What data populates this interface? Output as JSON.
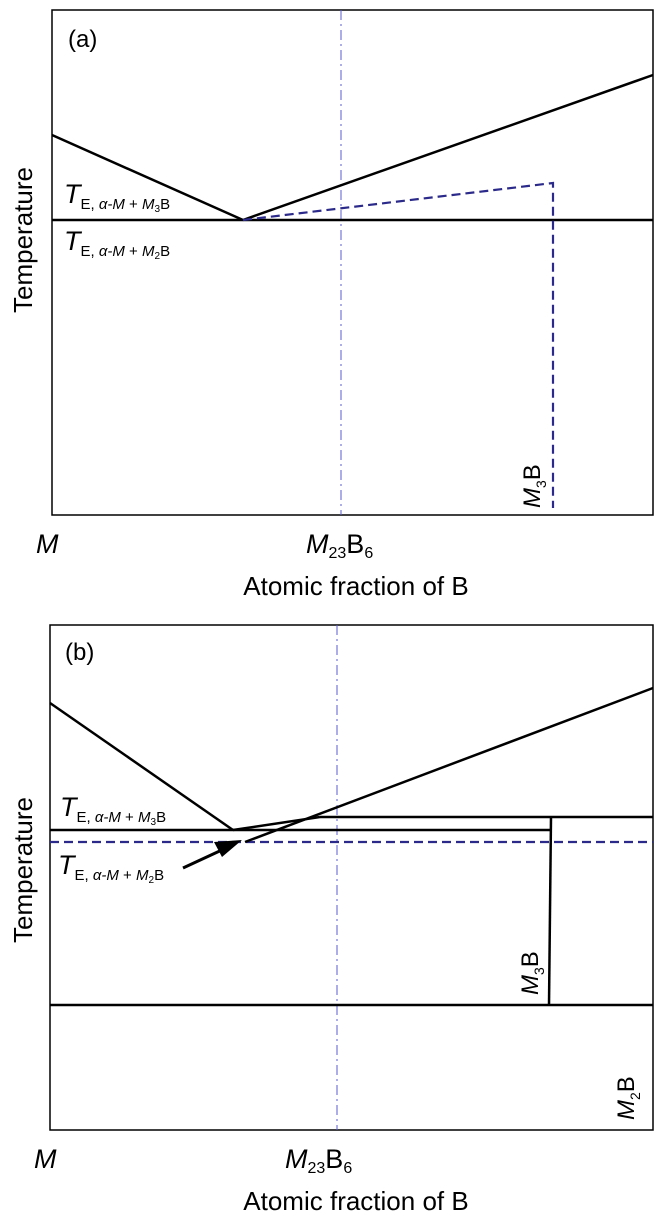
{
  "panels": [
    {
      "label": "(a)",
      "ylabel": "Temperature",
      "xlabel": "Atomic fraction of B",
      "x_left": "M",
      "x_mid": {
        "main": "M",
        "sub1": "23",
        "mid": "B",
        "sub2": "6"
      },
      "eutectic_upper": {
        "T": "T",
        "sub": "E, ",
        "phase": "α-M",
        "plus": " + ",
        "m": "M",
        "msub": "3",
        "b": "B"
      },
      "eutectic_lower": {
        "T": "T",
        "sub": "E, ",
        "phase": "α-M",
        "plus": " + ",
        "m": "M",
        "msub": "2",
        "b": "B"
      },
      "compound_label": {
        "m": "M",
        "sub": "3",
        "b": "B"
      }
    },
    {
      "label": "(b)",
      "ylabel": "Temperature",
      "xlabel": "Atomic fraction of B",
      "x_left": "M",
      "x_mid": {
        "main": "M",
        "sub1": "23",
        "mid": "B",
        "sub2": "6"
      },
      "eutectic_upper": {
        "T": "T",
        "sub": "E, ",
        "phase": "α-M",
        "plus": " + ",
        "m": "M",
        "msub": "3",
        "b": "B"
      },
      "eutectic_lower": {
        "T": "T",
        "sub": "E, ",
        "phase": "α-M",
        "plus": " + ",
        "m": "M",
        "msub": "2",
        "b": "B"
      },
      "compound_label": {
        "m": "M",
        "sub": "3",
        "b": "B"
      },
      "compound_label_2": {
        "m": "M",
        "sub": "2",
        "b": "B"
      }
    }
  ],
  "colors": {
    "solid": "#000000",
    "dashed": "#2b2a8a",
    "dashdot": "#5b5bd0"
  }
}
